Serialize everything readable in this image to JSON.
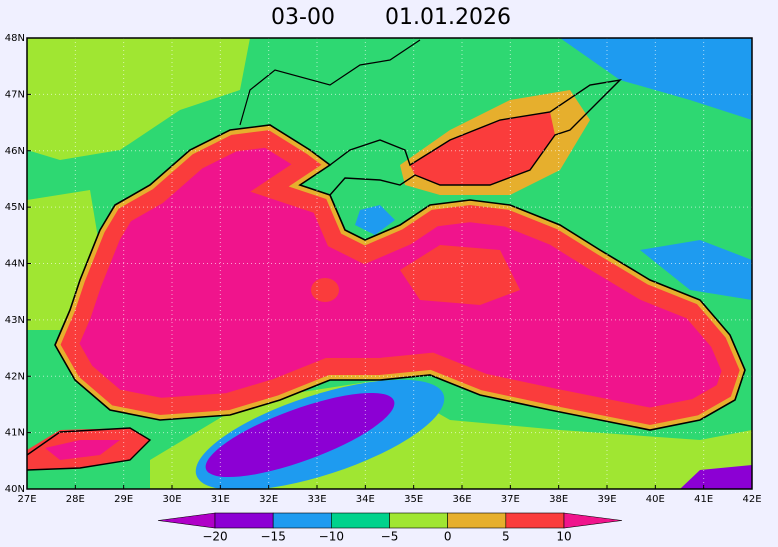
{
  "title": {
    "time": "03-00",
    "date": "01.01.2026"
  },
  "map": {
    "lon_ticks": [
      {
        "value": 27,
        "label": "27E"
      },
      {
        "value": 28,
        "label": "28E"
      },
      {
        "value": 29,
        "label": "29E"
      },
      {
        "value": 30,
        "label": "30E"
      },
      {
        "value": 31,
        "label": "31E"
      },
      {
        "value": 32,
        "label": "32E"
      },
      {
        "value": 33,
        "label": "33E"
      },
      {
        "value": 34,
        "label": "34E"
      },
      {
        "value": 35,
        "label": "35E"
      },
      {
        "value": 36,
        "label": "36E"
      },
      {
        "value": 37,
        "label": "37E"
      },
      {
        "value": 38,
        "label": "38E"
      },
      {
        "value": 39,
        "label": "39E"
      },
      {
        "value": 40,
        "label": "40E"
      },
      {
        "value": 41,
        "label": "41E"
      },
      {
        "value": 42,
        "label": "42E"
      }
    ],
    "lat_ticks": [
      {
        "value": 40,
        "label": "40N"
      },
      {
        "value": 41,
        "label": "41N"
      },
      {
        "value": 42,
        "label": "42N"
      },
      {
        "value": 43,
        "label": "43N"
      },
      {
        "value": 44,
        "label": "44N"
      },
      {
        "value": 45,
        "label": "45N"
      },
      {
        "value": 46,
        "label": "46N"
      },
      {
        "value": 47,
        "label": "47N"
      },
      {
        "value": 48,
        "label": "48N"
      }
    ],
    "lonlim": [
      27,
      42
    ],
    "latlim": [
      40,
      48
    ],
    "grid": true
  },
  "colorbar": {
    "levels": [
      {
        "value": -20,
        "label": "−20"
      },
      {
        "value": -15,
        "label": "−15"
      },
      {
        "value": -10,
        "label": "−10"
      },
      {
        "value": -5,
        "label": "−5"
      },
      {
        "value": 0,
        "label": "0"
      },
      {
        "value": 5,
        "label": "5"
      },
      {
        "value": 10,
        "label": "10"
      }
    ],
    "colors": [
      "#b000c8",
      "#8c00d4",
      "#1e9bf0",
      "#00d28c",
      "#a0e632",
      "#e6af2d",
      "#fa3c3c",
      "#f0148c"
    ]
  }
}
